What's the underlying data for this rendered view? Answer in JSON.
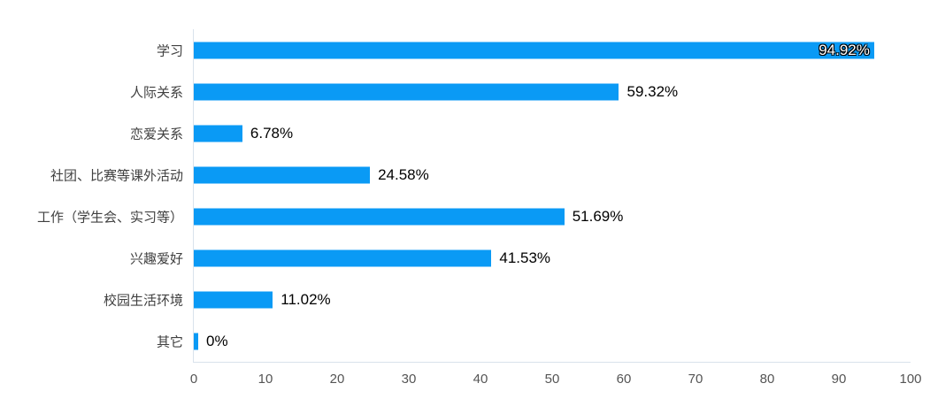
{
  "chart_data": {
    "type": "bar",
    "orientation": "horizontal",
    "title": "",
    "xlabel": "",
    "ylabel": "",
    "categories": [
      "学习",
      "人际关系",
      "恋爱关系",
      "社团、比赛等课外活动",
      "工作（学生会、实习等）",
      "兴趣爱好",
      "校园生活环境",
      "其它"
    ],
    "values": [
      94.92,
      59.32,
      6.78,
      24.58,
      51.69,
      41.53,
      11.02,
      0
    ],
    "value_labels": [
      "94.92%",
      "59.32%",
      "6.78%",
      "24.58%",
      "51.69%",
      "41.53%",
      "11.02%",
      "0%"
    ],
    "x_ticks": [
      "0",
      "10",
      "20",
      "30",
      "40",
      "50",
      "60",
      "70",
      "80",
      "90",
      "100"
    ],
    "xlim": [
      0,
      100
    ],
    "grid": false,
    "legend": "none",
    "colors": {
      "bar": "#0a9af5",
      "axis_line": "#d9e2ec",
      "category_text": "#404040",
      "value_text": "#000000",
      "tick_text": "#555555",
      "inside_value_text": "#ffffff"
    }
  }
}
